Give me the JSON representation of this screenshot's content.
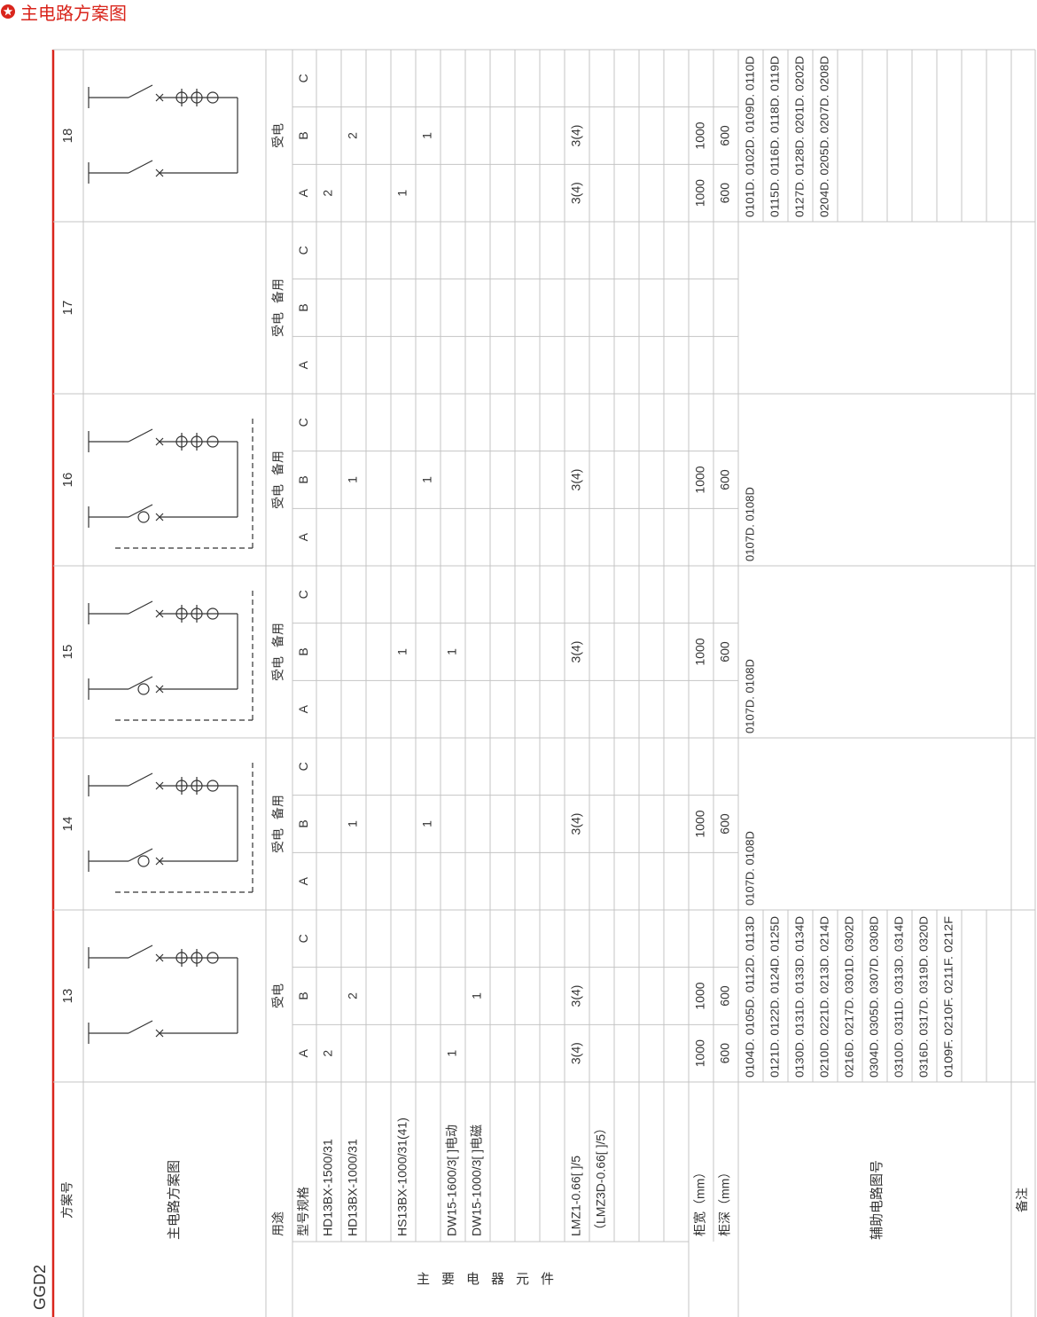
{
  "header": {
    "title": "主电路方案图"
  },
  "model": "GGD2",
  "table": {
    "labels": {
      "scheme": "方案号",
      "diagram": "主电路方案图",
      "usage": "用途",
      "spec": "型号规格",
      "group": "主要电器元件",
      "width": "柜宽（mm）",
      "depth": "柜深（mm）",
      "aux": "辅助电路图号",
      "note": "备注"
    },
    "subcolumns": [
      "A",
      "B",
      "C"
    ],
    "components": [
      "HD13BX-1500/31",
      "HD13BX-1000/31",
      null,
      "HS13BX-1000/31(41)",
      null,
      "DW15-1600/3[ ]电动",
      "DW15-1000/3[ ]电磁",
      null,
      null,
      null,
      "LMZ1-0.66[ ]/5",
      "（LMZ3D-0.66[ ]/5）",
      null,
      null,
      null
    ],
    "schemes": [
      {
        "number": "13",
        "usage": "受电",
        "quantities": [
          [
            2,
            null,
            null
          ],
          [
            null,
            2,
            null
          ],
          [
            null,
            null,
            null
          ],
          [
            null,
            null,
            null
          ],
          [
            null,
            null,
            null
          ],
          [
            1,
            null,
            null
          ],
          [
            null,
            1,
            null
          ],
          [
            null,
            null,
            null
          ],
          [
            null,
            null,
            null
          ],
          [
            null,
            null,
            null
          ],
          [
            "3(4)",
            "3(4)",
            null
          ],
          [
            null,
            null,
            null
          ],
          [
            null,
            null,
            null
          ],
          [
            null,
            null,
            null
          ],
          [
            null,
            null,
            null
          ]
        ],
        "width": [
          1000,
          1000,
          null
        ],
        "depth": [
          600,
          600,
          null
        ],
        "aux": [
          "0104D. 0105D. 0112D. 0113D",
          "0121D. 0122D. 0124D. 0125D",
          "0130D. 0131D. 0133D. 0134D",
          "0210D. 0221D. 0213D. 0214D",
          "0216D. 0217D. 0301D. 0302D",
          "0304D. 0305D. 0307D. 0308D",
          "0310D. 0311D. 0313D. 0314D",
          "0316D. 0317D. 0319D. 0320D",
          "0109F. 0210F. 0211F. 0212F"
        ]
      },
      {
        "number": "14",
        "usage": "受电 备用",
        "quantities": [
          [
            null,
            null,
            null
          ],
          [
            null,
            1,
            null
          ],
          [
            null,
            null,
            null
          ],
          [
            null,
            null,
            null
          ],
          [
            null,
            1,
            null
          ],
          [
            null,
            null,
            null
          ],
          [
            null,
            null,
            null
          ],
          [
            null,
            null,
            null
          ],
          [
            null,
            null,
            null
          ],
          [
            null,
            null,
            null
          ],
          [
            null,
            "3(4)",
            null
          ],
          [
            null,
            null,
            null
          ],
          [
            null,
            null,
            null
          ],
          [
            null,
            null,
            null
          ],
          [
            null,
            null,
            null
          ]
        ],
        "width": [
          null,
          1000,
          null
        ],
        "depth": [
          null,
          600,
          null
        ],
        "aux": [
          "0107D. 0108D"
        ]
      },
      {
        "number": "15",
        "usage": "受电 备用",
        "quantities": [
          [
            null,
            null,
            null
          ],
          [
            null,
            null,
            null
          ],
          [
            null,
            null,
            null
          ],
          [
            null,
            1,
            null
          ],
          [
            null,
            null,
            null
          ],
          [
            null,
            1,
            null
          ],
          [
            null,
            null,
            null
          ],
          [
            null,
            null,
            null
          ],
          [
            null,
            null,
            null
          ],
          [
            null,
            null,
            null
          ],
          [
            null,
            "3(4)",
            null
          ],
          [
            null,
            null,
            null
          ],
          [
            null,
            null,
            null
          ],
          [
            null,
            null,
            null
          ],
          [
            null,
            null,
            null
          ]
        ],
        "width": [
          null,
          1000,
          null
        ],
        "depth": [
          null,
          600,
          null
        ],
        "aux": [
          "0107D. 0108D"
        ]
      },
      {
        "number": "16",
        "usage": "受电 备用",
        "quantities": [
          [
            null,
            null,
            null
          ],
          [
            null,
            1,
            null
          ],
          [
            null,
            null,
            null
          ],
          [
            null,
            null,
            null
          ],
          [
            null,
            1,
            null
          ],
          [
            null,
            null,
            null
          ],
          [
            null,
            null,
            null
          ],
          [
            null,
            null,
            null
          ],
          [
            null,
            null,
            null
          ],
          [
            null,
            null,
            null
          ],
          [
            null,
            "3(4)",
            null
          ],
          [
            null,
            null,
            null
          ],
          [
            null,
            null,
            null
          ],
          [
            null,
            null,
            null
          ],
          [
            null,
            null,
            null
          ]
        ],
        "width": [
          null,
          1000,
          null
        ],
        "depth": [
          null,
          600,
          null
        ],
        "aux": [
          "0107D. 0108D"
        ]
      },
      {
        "number": "17",
        "usage": "受电 备用",
        "quantities": [
          [
            null,
            null,
            null
          ],
          [
            null,
            null,
            null
          ],
          [
            null,
            null,
            null
          ],
          [
            null,
            null,
            null
          ],
          [
            null,
            null,
            null
          ],
          [
            null,
            null,
            null
          ],
          [
            null,
            null,
            null
          ],
          [
            null,
            null,
            null
          ],
          [
            null,
            null,
            null
          ],
          [
            null,
            null,
            null
          ],
          [
            null,
            null,
            null
          ],
          [
            null,
            null,
            null
          ],
          [
            null,
            null,
            null
          ],
          [
            null,
            null,
            null
          ],
          [
            null,
            null,
            null
          ]
        ],
        "width": [
          null,
          null,
          null
        ],
        "depth": [
          null,
          null,
          null
        ],
        "aux": []
      },
      {
        "number": "18",
        "usage": "受电",
        "quantities": [
          [
            2,
            null,
            null
          ],
          [
            null,
            2,
            null
          ],
          [
            null,
            null,
            null
          ],
          [
            1,
            null,
            null
          ],
          [
            null,
            1,
            null
          ],
          [
            null,
            null,
            null
          ],
          [
            null,
            null,
            null
          ],
          [
            null,
            null,
            null
          ],
          [
            null,
            null,
            null
          ],
          [
            null,
            null,
            null
          ],
          [
            "3(4)",
            "3(4)",
            null
          ],
          [
            null,
            null,
            null
          ],
          [
            null,
            null,
            null
          ],
          [
            null,
            null,
            null
          ],
          [
            null,
            null,
            null
          ]
        ],
        "width": [
          1000,
          1000,
          null
        ],
        "depth": [
          600,
          600,
          null
        ],
        "aux": [
          "0101D. 0102D. 0109D. 0110D",
          "0115D. 0116D. 0118D. 0119D",
          "0127D. 0128D. 0201D. 0202D",
          "0204D. 0205D. 0207D. 0208D"
        ]
      }
    ]
  }
}
